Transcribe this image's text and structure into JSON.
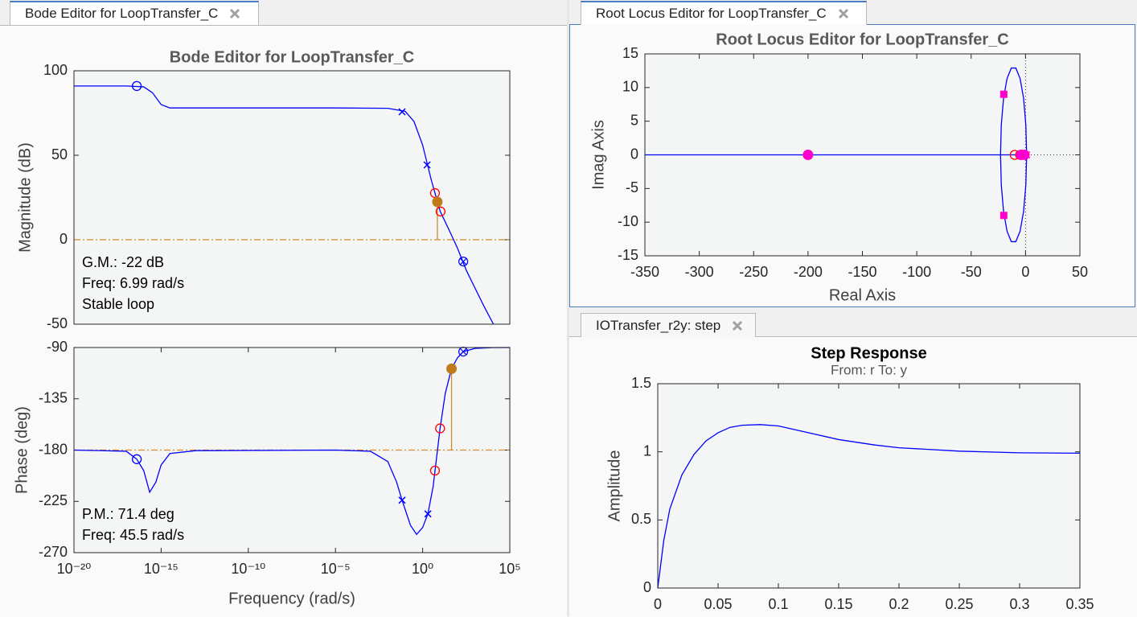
{
  "tabs": [
    "Bode Editor for LoopTransfer_C",
    "Root Locus Editor for LoopTransfer_C",
    "IOTransfer_r2y: step"
  ],
  "chart_data": [
    {
      "type": "line",
      "title": "Bode Editor for LoopTransfer_C",
      "ylabel": "Magnitude (dB)",
      "xscale": "log",
      "xlim": [
        1e-20,
        100000
      ],
      "ylim": [
        -50,
        100
      ],
      "yticks": [
        -50,
        0,
        50,
        100
      ],
      "annotations": [
        "G.M.: -22 dB",
        "Freq: 6.99 rad/s",
        "Stable loop"
      ],
      "series": [
        {
          "color": "#d08b2a",
          "linestyle": "dashdot",
          "x": [
            1e-20,
            100000
          ],
          "values": [
            0,
            0
          ]
        },
        {
          "color": "#d08b2a",
          "x": [
            6.99,
            6.99
          ],
          "values": [
            0,
            22.4
          ]
        },
        {
          "color": "#0000ff",
          "x": [
            1e-20,
            1e-17,
            1e-16,
            3.2e-16,
            1e-15,
            3.2e-15,
            1e-10,
            1e-05,
            0.01,
            0.1,
            0.32,
            1,
            3.2,
            10,
            32,
            100,
            316,
            1000,
            3162,
            11500
          ],
          "values": [
            91,
            91,
            90.5,
            87,
            80,
            78,
            78,
            78,
            77.8,
            76,
            70,
            56,
            35,
            17,
            6,
            -5,
            -18,
            -28.5,
            -39,
            -50
          ]
        },
        {
          "color": "#0000ff",
          "marker": "o",
          "x": [
            4e-17
          ],
          "values": [
            91
          ]
        },
        {
          "color": "#0000ff",
          "marker": "x",
          "x": [
            0.066,
            1.8
          ],
          "values": [
            75.7,
            44.3
          ]
        },
        {
          "color": "#ff0000",
          "marker": "o",
          "x": [
            5.1,
            10.7
          ],
          "values": [
            27.6,
            16.7
          ]
        },
        {
          "color": "#c07a1a",
          "marker": "o-filled",
          "x": [
            6.99
          ],
          "values": [
            22.4
          ]
        },
        {
          "color": "#0000ff",
          "marker": "ox",
          "x": [
            214
          ],
          "values": [
            -12.9
          ]
        }
      ]
    },
    {
      "type": "line",
      "xlabel": "Frequency (rad/s)",
      "ylabel": "Phase (deg)",
      "xscale": "log",
      "xlim": [
        1e-20,
        100000
      ],
      "ylim": [
        -270,
        -90
      ],
      "yticks": [
        -270,
        -225,
        -180,
        -135,
        -90
      ],
      "xticks": [
        {
          "value": 1e-20,
          "label": "10⁻²⁰"
        },
        {
          "value": 1e-15,
          "label": "10⁻¹⁵"
        },
        {
          "value": 1e-10,
          "label": "10⁻¹⁰"
        },
        {
          "value": 1e-05,
          "label": "10⁻⁵"
        },
        {
          "value": 1,
          "label": "10⁰"
        },
        {
          "value": 100000,
          "label": "10⁵"
        }
      ],
      "annotations": [
        "P.M.: 71.4 deg",
        "Freq: 45.5 rad/s"
      ],
      "series": [
        {
          "color": "#d08b2a",
          "linestyle": "dashdot",
          "x": [
            1e-20,
            100000
          ],
          "values": [
            -180,
            -180
          ]
        },
        {
          "color": "#d08b2a",
          "x": [
            45.5,
            45.5
          ],
          "values": [
            -180,
            -108.6
          ]
        },
        {
          "color": "#0000ff",
          "x": [
            1e-20,
            1e-17,
            4e-17,
            1e-16,
            2.2e-16,
            5e-16,
            1e-15,
            3.2e-15,
            1e-13,
            1e-05,
            0.001,
            0.01,
            0.032,
            0.066,
            0.2,
            0.45,
            1,
            2,
            4,
            10,
            20,
            45.5,
            100,
            214,
            1000,
            10000,
            100000
          ],
          "values": [
            -180,
            -181,
            -188,
            -198,
            -217,
            -208,
            -193,
            -183,
            -180.5,
            -180,
            -181,
            -190,
            -208,
            -224,
            -246,
            -254,
            -248,
            -236,
            -212,
            -161,
            -130,
            -108.6,
            -99,
            -93.6,
            -90.8,
            -90.1,
            -90
          ]
        },
        {
          "color": "#0000ff",
          "marker": "o",
          "x": [
            4e-17
          ],
          "values": [
            -188
          ]
        },
        {
          "color": "#0000ff",
          "marker": "x",
          "x": [
            0.066,
            2
          ],
          "values": [
            -224,
            -236
          ]
        },
        {
          "color": "#ff0000",
          "marker": "o",
          "x": [
            5.1,
            10
          ],
          "values": [
            -198,
            -161
          ]
        },
        {
          "color": "#c07a1a",
          "marker": "o-filled",
          "x": [
            45.5
          ],
          "values": [
            -108.6
          ]
        },
        {
          "color": "#0000ff",
          "marker": "ox",
          "x": [
            214
          ],
          "values": [
            -93.6
          ]
        }
      ]
    },
    {
      "type": "scatter",
      "title": "Root Locus Editor for LoopTransfer_C",
      "xlabel": "Real Axis",
      "ylabel": "Imag Axis",
      "xlim": [
        -350,
        50
      ],
      "ylim": [
        -15,
        15
      ],
      "xticks": [
        -350,
        -300,
        -250,
        -200,
        -150,
        -100,
        -50,
        0,
        50
      ],
      "yticks": [
        -15,
        -10,
        -5,
        0,
        5,
        10,
        15
      ],
      "origin_lines": true,
      "series": [
        {
          "color": "#0000ff",
          "x": [
            -350,
            0
          ],
          "values": [
            0,
            0
          ]
        },
        {
          "color": "#0000ff",
          "x": [
            1,
            0.28,
            -1.81,
            -5,
            -8.92,
            -13.08,
            -17,
            -20.19,
            -22.28,
            -23,
            -22.28,
            -20.19,
            -17,
            -13.08,
            -8.92,
            -5,
            -1.81,
            0.28,
            1
          ],
          "values": [
            0,
            4.48,
            8.42,
            11.34,
            12.9,
            12.9,
            11.34,
            8.42,
            4.48,
            0,
            -4.48,
            -8.42,
            -11.34,
            -12.9,
            -12.9,
            -11.34,
            -8.42,
            -4.48,
            0
          ]
        },
        {
          "color": "#ff0000",
          "marker": "o",
          "x": [
            -10,
            -5
          ],
          "values": [
            0,
            0
          ]
        },
        {
          "color": "#ff00cc",
          "marker": "o-filled",
          "x": [
            -200,
            -4,
            -1
          ],
          "values": [
            0,
            0,
            0
          ]
        },
        {
          "color": "#ff00cc",
          "marker": "s-filled",
          "x": [
            -20,
            -20
          ],
          "values": [
            9,
            -9
          ]
        },
        {
          "color": "#ff00cc",
          "marker": "x",
          "x": [
            1
          ],
          "values": [
            0
          ]
        }
      ]
    },
    {
      "type": "line",
      "title": "Step Response",
      "subtitle": "From: r  To: y",
      "ylabel": "Amplitude",
      "xlim": [
        0,
        0.35
      ],
      "ylim": [
        0,
        1.5
      ],
      "xticks": [
        0,
        0.05,
        0.1,
        0.15,
        0.2,
        0.25,
        0.3,
        0.35
      ],
      "yticks": [
        0,
        0.5,
        1,
        1.5
      ],
      "series": [
        {
          "color": "#0000ff",
          "x": [
            0,
            0.005,
            0.01,
            0.02,
            0.03,
            0.04,
            0.05,
            0.06,
            0.07,
            0.085,
            0.1,
            0.12,
            0.15,
            0.18,
            0.2,
            0.25,
            0.3,
            0.35
          ],
          "values": [
            0,
            0.35,
            0.58,
            0.83,
            0.98,
            1.08,
            1.14,
            1.18,
            1.195,
            1.2,
            1.19,
            1.15,
            1.09,
            1.05,
            1.03,
            1.005,
            0.993,
            0.99
          ]
        }
      ]
    }
  ]
}
